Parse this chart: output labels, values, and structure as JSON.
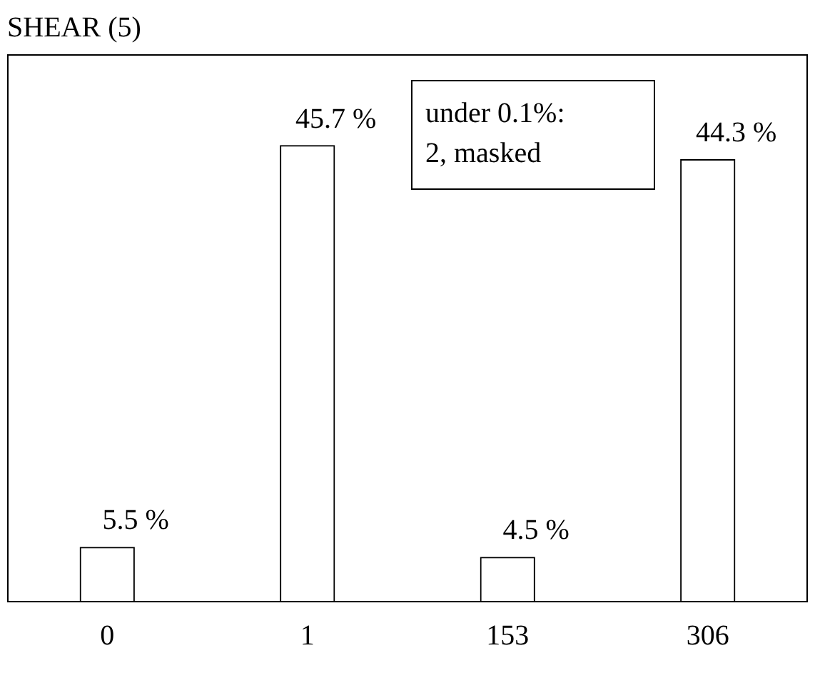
{
  "chart_data": {
    "type": "bar",
    "title": "SHEAR (5)",
    "categories": [
      "0",
      "1",
      "153",
      "306"
    ],
    "values": [
      5.5,
      45.7,
      4.5,
      44.3
    ],
    "value_labels": [
      "5.5 %",
      "45.7 %",
      "4.5 %",
      "44.3 %"
    ],
    "color": "#ffffff",
    "tick_labels": "x",
    "grid": false,
    "legend": false,
    "annotations": [
      "under 0.1%:\n2, masked"
    ]
  }
}
